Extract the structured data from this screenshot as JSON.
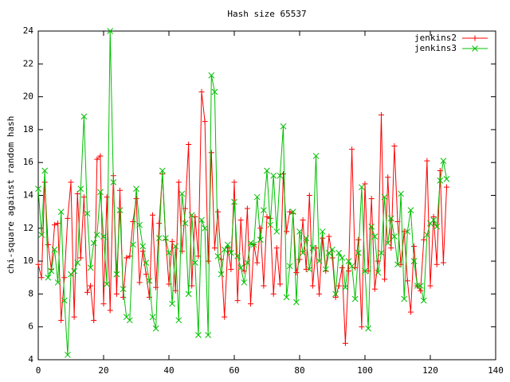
{
  "chart_data": {
    "type": "line",
    "title": "Hash size 65537",
    "y_label": "chi-square against random hash",
    "x": [
      0,
      1,
      2,
      3,
      4,
      5,
      6,
      7,
      8,
      9,
      10,
      11,
      12,
      13,
      14,
      15,
      16,
      17,
      18,
      19,
      20,
      21,
      22,
      23,
      24,
      25,
      26,
      27,
      28,
      29,
      30,
      31,
      32,
      33,
      34,
      35,
      36,
      37,
      38,
      39,
      40,
      41,
      42,
      43,
      44,
      45,
      46,
      47,
      48,
      49,
      50,
      51,
      52,
      53,
      54,
      55,
      56,
      57,
      58,
      59,
      60,
      61,
      62,
      63,
      64,
      65,
      66,
      67,
      68,
      69,
      70,
      71,
      72,
      73,
      74,
      75,
      76,
      77,
      78,
      79,
      80,
      81,
      82,
      83,
      84,
      85,
      86,
      87,
      88,
      89,
      90,
      91,
      92,
      93,
      94,
      95,
      96,
      97,
      98,
      99,
      100,
      101,
      102,
      103,
      104,
      105,
      106,
      107,
      108,
      109,
      110,
      111,
      112,
      113,
      114,
      115,
      116,
      117,
      118,
      119,
      120,
      121,
      122,
      123,
      124,
      125
    ],
    "series": [
      {
        "name": "jenkins2",
        "color": "#ff0000",
        "marker": "plus",
        "values": [
          9.8,
          9.0,
          14.8,
          11.0,
          9.5,
          12.2,
          12.3,
          6.4,
          9.0,
          12.6,
          14.8,
          6.6,
          14.1,
          10.2,
          13.9,
          8.1,
          8.5,
          6.4,
          16.2,
          16.4,
          7.4,
          13.9,
          7.0,
          15.2,
          8.0,
          14.3,
          7.8,
          10.2,
          10.3,
          12.4,
          13.8,
          8.7,
          10.6,
          9.2,
          7.8,
          12.8,
          8.4,
          12.3,
          15.3,
          11.3,
          8.6,
          11.2,
          8.2,
          14.8,
          10.6,
          13.2,
          17.1,
          8.5,
          12.7,
          10.3,
          20.3,
          18.5,
          10.0,
          16.6,
          10.8,
          13.0,
          10.1,
          6.6,
          10.8,
          9.5,
          14.8,
          7.6,
          12.5,
          9.4,
          13.2,
          7.4,
          11.0,
          9.9,
          12.0,
          8.5,
          12.7,
          12.6,
          8.0,
          10.8,
          8.6,
          15.3,
          11.8,
          13.0,
          12.9,
          9.3,
          10.1,
          12.5,
          9.5,
          14.0,
          8.5,
          10.8,
          8.0,
          11.4,
          9.4,
          11.5,
          10.2,
          7.8,
          8.5,
          9.6,
          5.0,
          9.4,
          16.8,
          9.6,
          11.3,
          6.0,
          14.7,
          9.4,
          13.8,
          8.3,
          10.0,
          18.9,
          8.9,
          15.1,
          10.8,
          17.0,
          12.4,
          9.8,
          11.8,
          8.8,
          6.9,
          10.9,
          8.5,
          8.2,
          11.3,
          16.1,
          8.5,
          12.7,
          9.8,
          15.5,
          9.9,
          14.5
        ]
      },
      {
        "name": "jenkins3",
        "color": "#00c000",
        "marker": "cross",
        "values": [
          14.4,
          11.6,
          15.5,
          9.0,
          9.4,
          10.7,
          8.7,
          13.0,
          7.6,
          4.3,
          9.2,
          9.4,
          9.9,
          14.4,
          18.8,
          12.9,
          9.6,
          11.1,
          11.6,
          14.2,
          11.5,
          8.6,
          24.0,
          14.8,
          9.2,
          13.1,
          8.3,
          6.6,
          6.4,
          11.0,
          14.4,
          12.2,
          10.9,
          9.9,
          8.8,
          6.6,
          5.9,
          11.4,
          15.5,
          11.4,
          10.5,
          7.4,
          10.9,
          6.4,
          14.1,
          12.3,
          8.0,
          12.8,
          9.9,
          5.5,
          12.5,
          12.0,
          5.5,
          21.3,
          20.3,
          10.3,
          9.2,
          10.7,
          11.0,
          10.5,
          13.6,
          10.3,
          9.6,
          8.7,
          9.9,
          11.1,
          11.0,
          13.9,
          11.3,
          13.1,
          15.5,
          12.2,
          15.2,
          11.8,
          15.2,
          18.2,
          7.8,
          9.7,
          13.0,
          7.5,
          11.8,
          10.5,
          11.4,
          9.5,
          10.8,
          16.4,
          10.0,
          11.8,
          9.5,
          10.5,
          10.7,
          8.0,
          10.5,
          10.2,
          8.4,
          10.0,
          9.7,
          7.7,
          10.5,
          14.5,
          9.4,
          5.9,
          12.1,
          11.5,
          9.3,
          10.5,
          13.9,
          11.1,
          12.6,
          11.5,
          9.8,
          14.1,
          7.7,
          11.8,
          13.1,
          10.0,
          8.5,
          8.5,
          7.6,
          11.6,
          12.3,
          12.5,
          12.1,
          14.9,
          16.1,
          15.0
        ]
      }
    ],
    "xlim": [
      0,
      140
    ],
    "xticks": [
      0,
      20,
      40,
      60,
      80,
      100,
      120,
      140
    ],
    "ylim": [
      4,
      24
    ],
    "yticks": [
      4,
      6,
      8,
      10,
      12,
      14,
      16,
      18,
      20,
      22,
      24
    ],
    "legend": "top-right"
  }
}
